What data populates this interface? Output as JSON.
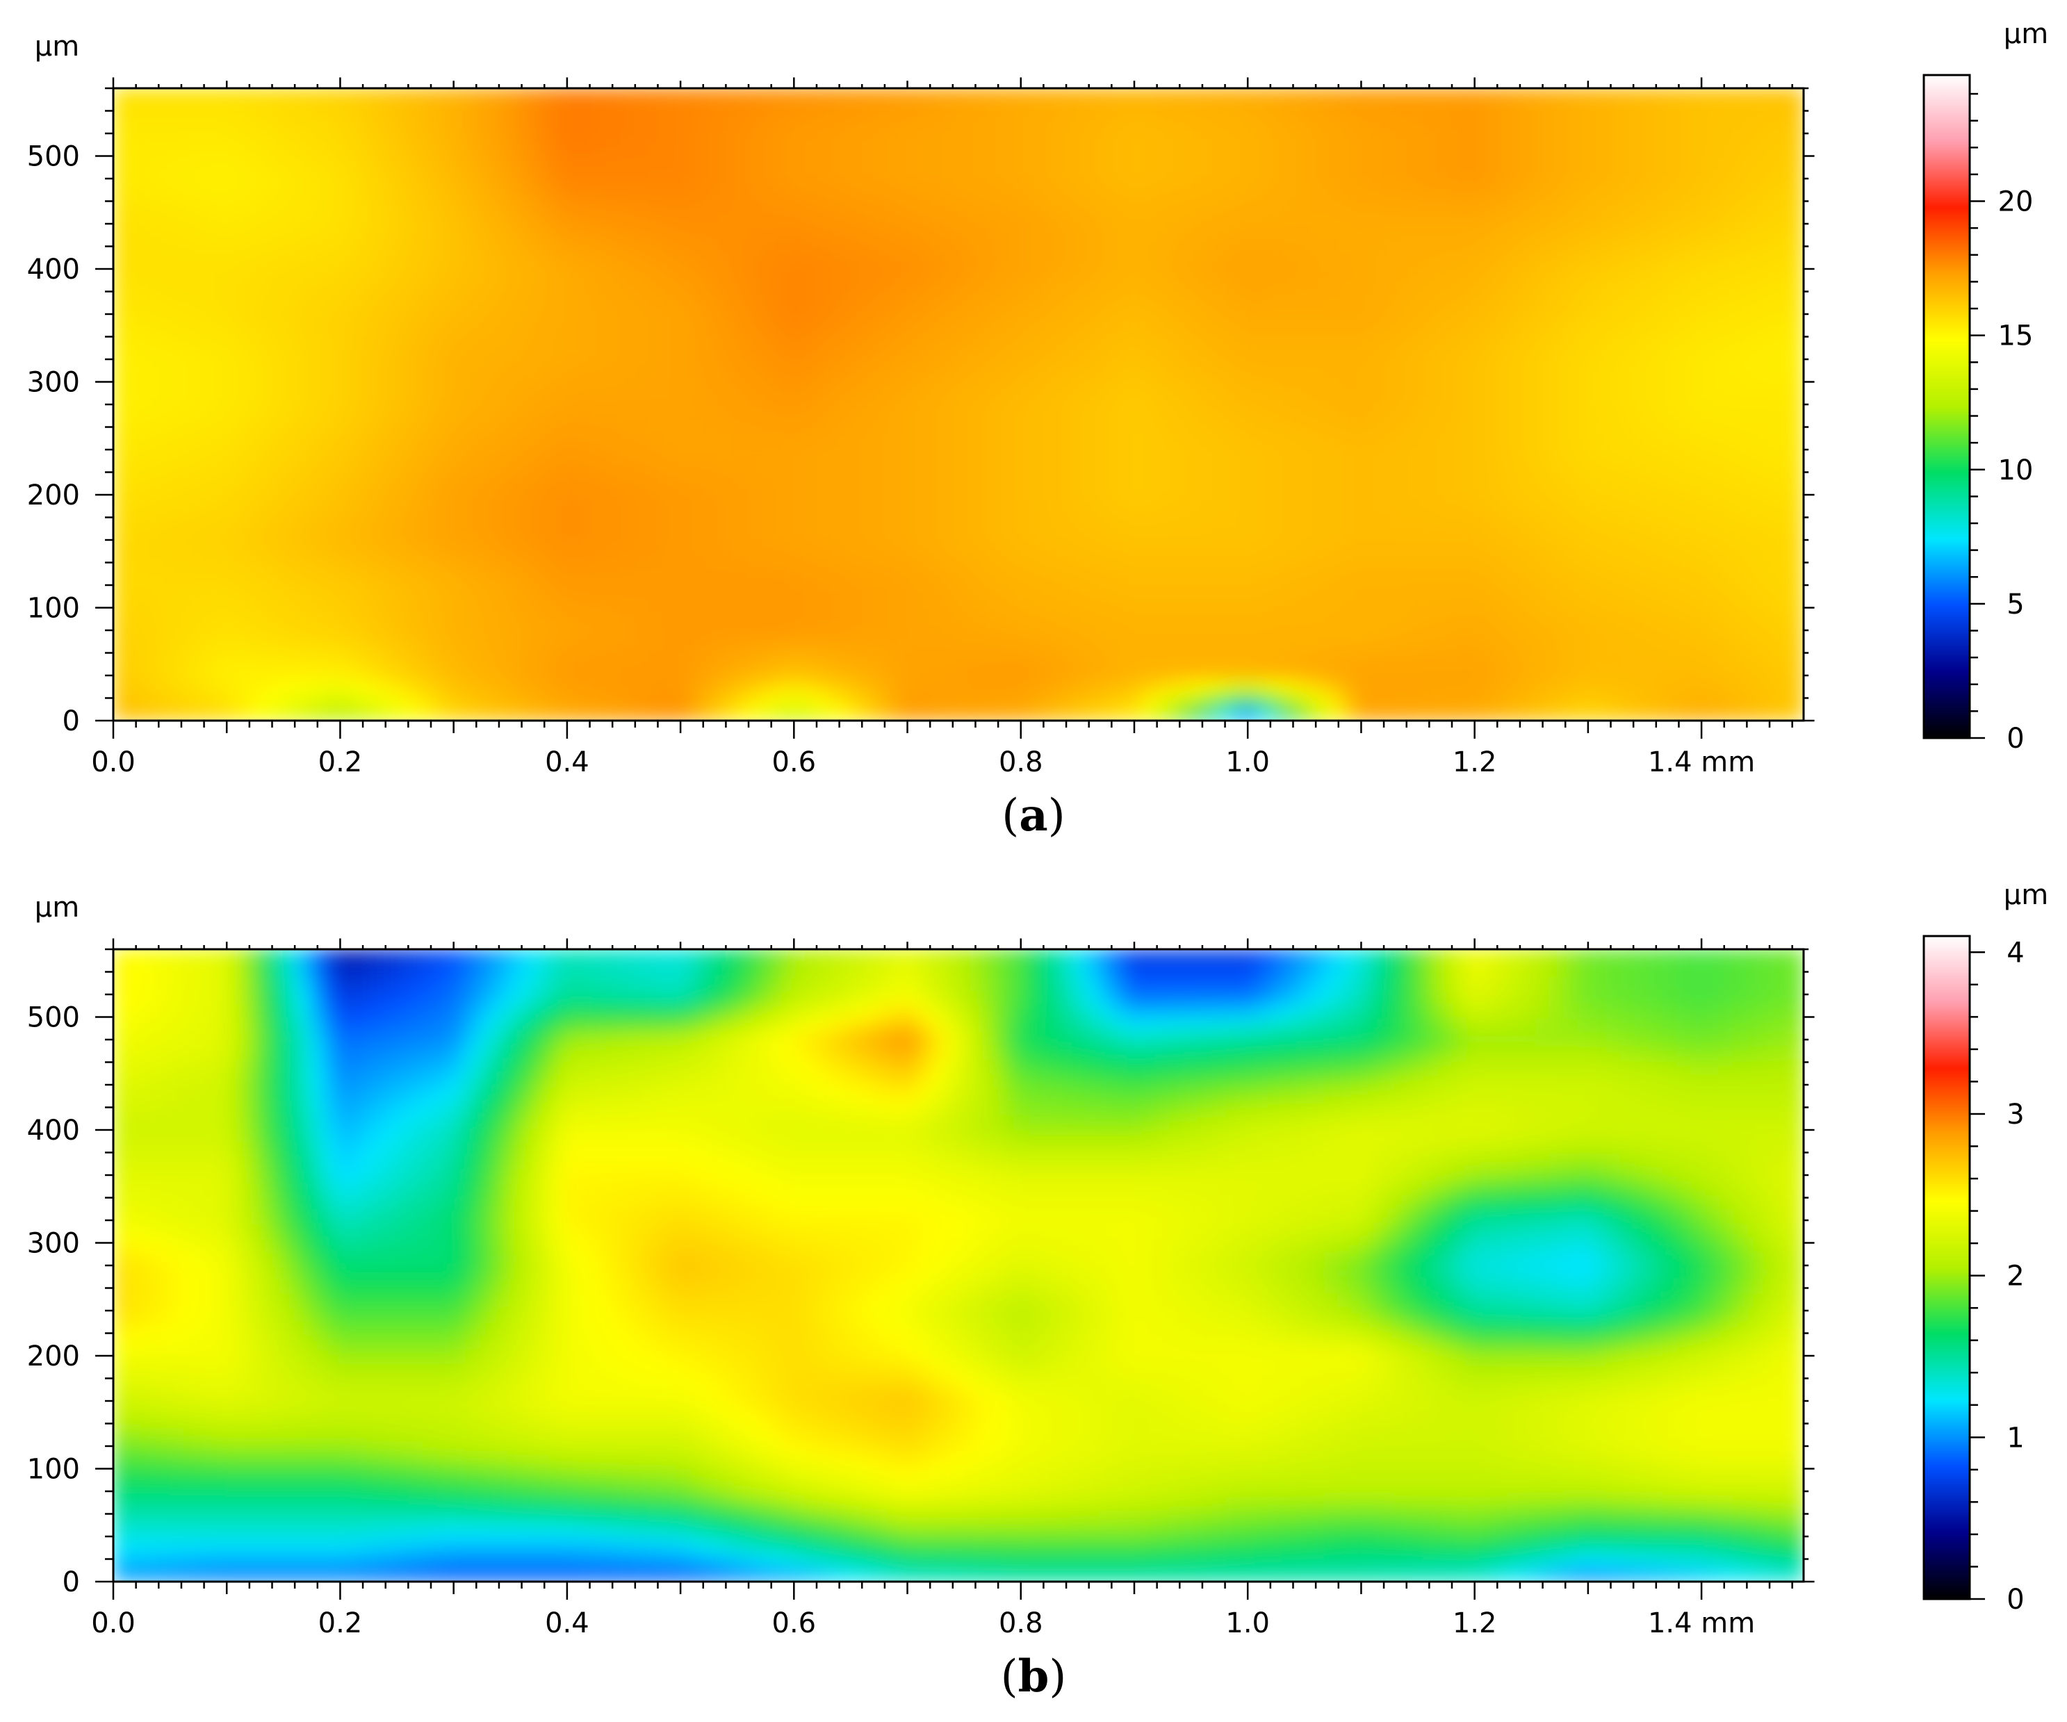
{
  "chart_data": [
    {
      "type": "heatmap",
      "panel_label": "a",
      "x_unit": "mm",
      "y_unit": "µm",
      "colorbar_unit": "µm",
      "xlim": [
        0.0,
        1.49
      ],
      "ylim": [
        0,
        560
      ],
      "x_ticks": [
        "0.0",
        "0.2",
        "0.4",
        "0.6",
        "0.8",
        "1.0",
        "1.2",
        "1.4 mm"
      ],
      "x_tick_values": [
        0.0,
        0.2,
        0.4,
        0.6,
        0.8,
        1.0,
        1.2,
        1.4
      ],
      "y_ticks": [
        "0",
        "100",
        "200",
        "300",
        "400",
        "500"
      ],
      "y_tick_values": [
        0,
        100,
        200,
        300,
        400,
        500
      ],
      "colorbar_ticks": [
        "0",
        "5",
        "10",
        "15",
        "20"
      ],
      "colorbar_tick_values": [
        0,
        5,
        10,
        15,
        20
      ],
      "colorbar_range": [
        0,
        24.7
      ],
      "colormap": [
        "#000000",
        "#00008b",
        "#0050ff",
        "#00e6ff",
        "#00dd66",
        "#b4f000",
        "#ffff00",
        "#ffa000",
        "#ff2000",
        "#ff9fb0",
        "#ffffff"
      ],
      "grid": false,
      "height_map": {
        "x": [
          0.0,
          0.1,
          0.2,
          0.3,
          0.4,
          0.5,
          0.6,
          0.7,
          0.8,
          0.9,
          1.0,
          1.1,
          1.2,
          1.3,
          1.4,
          1.49
        ],
        "y": [
          0,
          40,
          80,
          120,
          160,
          200,
          240,
          280,
          320,
          360,
          400,
          440,
          480,
          520,
          560
        ],
        "z": [
          [
            16.6,
            15.8,
            12.0,
            15.8,
            17.0,
            17.6,
            12.5,
            17.4,
            17.0,
            15.2,
            4.0,
            17.2,
            17.0,
            15.8,
            17.0,
            16.2
          ],
          [
            16.2,
            15.2,
            15.2,
            16.6,
            17.4,
            17.4,
            16.4,
            17.2,
            17.4,
            16.8,
            16.8,
            17.2,
            17.2,
            16.6,
            16.6,
            16.2
          ],
          [
            16.0,
            15.6,
            16.0,
            16.8,
            17.2,
            17.4,
            17.4,
            17.2,
            17.0,
            16.8,
            16.8,
            16.8,
            17.0,
            16.6,
            16.4,
            16.0
          ],
          [
            15.8,
            15.8,
            16.2,
            16.8,
            17.4,
            17.4,
            17.4,
            17.2,
            16.8,
            16.6,
            16.6,
            16.8,
            16.8,
            16.4,
            16.2,
            15.8
          ],
          [
            15.8,
            16.0,
            16.6,
            17.2,
            17.6,
            17.4,
            17.2,
            17.0,
            16.6,
            16.4,
            16.4,
            16.6,
            16.6,
            16.2,
            16.0,
            15.8
          ],
          [
            15.6,
            15.8,
            16.4,
            17.2,
            17.6,
            17.4,
            17.2,
            17.0,
            16.6,
            16.2,
            16.4,
            16.6,
            16.4,
            16.0,
            15.8,
            15.6
          ],
          [
            15.4,
            15.6,
            16.2,
            17.0,
            17.4,
            17.2,
            17.2,
            17.0,
            16.6,
            16.2,
            16.4,
            16.6,
            16.4,
            15.8,
            15.6,
            15.4
          ],
          [
            15.2,
            15.4,
            16.0,
            16.8,
            17.2,
            17.2,
            17.4,
            17.0,
            16.6,
            16.2,
            16.6,
            16.8,
            16.4,
            15.8,
            15.4,
            15.4
          ],
          [
            15.2,
            15.4,
            16.0,
            16.8,
            17.0,
            17.2,
            17.6,
            17.2,
            16.8,
            16.4,
            16.8,
            16.8,
            16.4,
            15.8,
            15.4,
            15.2
          ],
          [
            15.4,
            15.6,
            16.0,
            16.6,
            17.0,
            17.2,
            17.8,
            17.4,
            17.0,
            16.6,
            17.0,
            17.0,
            16.6,
            16.0,
            15.6,
            15.4
          ],
          [
            15.6,
            15.6,
            15.8,
            16.4,
            17.0,
            17.4,
            17.8,
            17.6,
            17.2,
            16.8,
            17.2,
            17.0,
            16.8,
            16.2,
            15.8,
            15.6
          ],
          [
            15.6,
            15.4,
            15.6,
            16.4,
            17.4,
            17.6,
            17.6,
            17.4,
            17.2,
            16.8,
            17.0,
            17.0,
            17.0,
            16.6,
            16.2,
            15.8
          ],
          [
            15.4,
            15.2,
            15.6,
            16.6,
            17.8,
            17.8,
            17.4,
            17.2,
            17.0,
            16.6,
            16.8,
            17.2,
            17.4,
            16.8,
            16.4,
            16.0
          ],
          [
            15.4,
            15.4,
            15.8,
            16.8,
            18.0,
            17.8,
            17.4,
            17.2,
            17.0,
            16.6,
            16.8,
            17.2,
            17.4,
            16.8,
            16.4,
            16.2
          ],
          [
            15.6,
            15.6,
            16.0,
            16.8,
            18.0,
            17.8,
            17.6,
            17.4,
            17.0,
            16.8,
            17.0,
            17.4,
            17.4,
            16.8,
            16.4,
            16.4
          ]
        ]
      }
    },
    {
      "type": "heatmap",
      "panel_label": "b",
      "x_unit": "mm",
      "y_unit": "µm",
      "colorbar_unit": "µm",
      "xlim": [
        0.0,
        1.49
      ],
      "ylim": [
        0,
        560
      ],
      "x_ticks": [
        "0.0",
        "0.2",
        "0.4",
        "0.6",
        "0.8",
        "1.0",
        "1.2",
        "1.4 mm"
      ],
      "x_tick_values": [
        0.0,
        0.2,
        0.4,
        0.6,
        0.8,
        1.0,
        1.2,
        1.4
      ],
      "y_ticks": [
        "0",
        "100",
        "200",
        "300",
        "400",
        "500"
      ],
      "y_tick_values": [
        0,
        100,
        200,
        300,
        400,
        500
      ],
      "colorbar_ticks": [
        "0",
        "1",
        "2",
        "3",
        "4"
      ],
      "colorbar_tick_values": [
        0,
        1,
        2,
        3,
        4
      ],
      "colorbar_range": [
        0,
        4.1
      ],
      "colormap": [
        "#000000",
        "#00008b",
        "#0050ff",
        "#00e6ff",
        "#00dd66",
        "#b4f000",
        "#ffff00",
        "#ffa000",
        "#ff2000",
        "#ff9fb0",
        "#ffffff"
      ],
      "grid": false,
      "height_map": {
        "x": [
          0.0,
          0.1,
          0.2,
          0.3,
          0.4,
          0.5,
          0.6,
          0.7,
          0.8,
          0.9,
          1.0,
          1.1,
          1.2,
          1.3,
          1.4,
          1.49
        ],
        "y": [
          0,
          40,
          80,
          120,
          160,
          200,
          240,
          280,
          320,
          360,
          400,
          440,
          480,
          520,
          560
        ],
        "z": [
          [
            1.0,
            0.9,
            0.9,
            0.8,
            0.8,
            0.8,
            1.0,
            1.3,
            1.4,
            1.4,
            1.4,
            1.4,
            1.3,
            0.9,
            1.1,
            1.3
          ],
          [
            1.3,
            1.3,
            1.3,
            1.2,
            1.2,
            1.3,
            1.6,
            1.9,
            1.9,
            1.9,
            1.8,
            1.7,
            1.8,
            1.6,
            1.6,
            1.8
          ],
          [
            1.6,
            1.6,
            1.6,
            1.7,
            1.8,
            1.9,
            2.2,
            2.4,
            2.3,
            2.2,
            2.1,
            2.1,
            2.1,
            2.1,
            2.2,
            2.2
          ],
          [
            1.9,
            2.0,
            2.0,
            2.1,
            2.2,
            2.2,
            2.5,
            2.6,
            2.4,
            2.3,
            2.3,
            2.2,
            2.2,
            2.3,
            2.4,
            2.4
          ],
          [
            2.2,
            2.3,
            2.2,
            2.2,
            2.4,
            2.4,
            2.6,
            2.7,
            2.4,
            2.3,
            2.4,
            2.3,
            2.2,
            2.3,
            2.4,
            2.4
          ],
          [
            2.4,
            2.4,
            2.0,
            2.0,
            2.4,
            2.5,
            2.6,
            2.5,
            2.2,
            2.4,
            2.4,
            2.4,
            2.0,
            2.0,
            2.2,
            2.4
          ],
          [
            2.6,
            2.4,
            1.8,
            1.8,
            2.4,
            2.6,
            2.6,
            2.4,
            2.1,
            2.4,
            2.3,
            2.0,
            1.5,
            1.4,
            1.8,
            2.3
          ],
          [
            2.6,
            2.4,
            1.6,
            1.6,
            2.4,
            2.7,
            2.6,
            2.5,
            2.3,
            2.4,
            2.2,
            1.9,
            1.3,
            1.2,
            1.7,
            2.2
          ],
          [
            2.4,
            2.3,
            1.4,
            1.6,
            2.5,
            2.6,
            2.5,
            2.5,
            2.4,
            2.4,
            2.3,
            2.2,
            1.5,
            1.4,
            1.9,
            2.3
          ],
          [
            2.3,
            2.3,
            1.2,
            1.5,
            2.5,
            2.5,
            2.4,
            2.4,
            2.3,
            2.3,
            2.3,
            2.3,
            2.0,
            1.9,
            2.1,
            2.3
          ],
          [
            2.2,
            2.2,
            1.1,
            1.4,
            2.4,
            2.4,
            2.3,
            2.3,
            2.0,
            2.0,
            2.2,
            2.3,
            2.3,
            2.2,
            2.2,
            2.2
          ],
          [
            2.3,
            2.2,
            1.0,
            1.2,
            2.2,
            2.3,
            2.4,
            2.6,
            1.9,
            1.8,
            1.9,
            2.0,
            2.2,
            2.2,
            2.1,
            2.1
          ],
          [
            2.4,
            2.3,
            0.9,
            1.0,
            2.0,
            2.1,
            2.5,
            2.9,
            1.7,
            1.4,
            1.5,
            1.6,
            2.0,
            2.0,
            1.9,
            2.0
          ],
          [
            2.5,
            2.3,
            0.7,
            0.9,
            1.5,
            1.4,
            2.1,
            2.4,
            1.8,
            0.9,
            0.9,
            1.4,
            2.3,
            1.9,
            1.8,
            1.9
          ],
          [
            2.5,
            2.3,
            0.5,
            0.8,
            1.4,
            1.3,
            2.0,
            2.3,
            1.8,
            0.7,
            0.7,
            1.3,
            2.4,
            1.9,
            1.8,
            1.9
          ]
        ]
      }
    }
  ]
}
